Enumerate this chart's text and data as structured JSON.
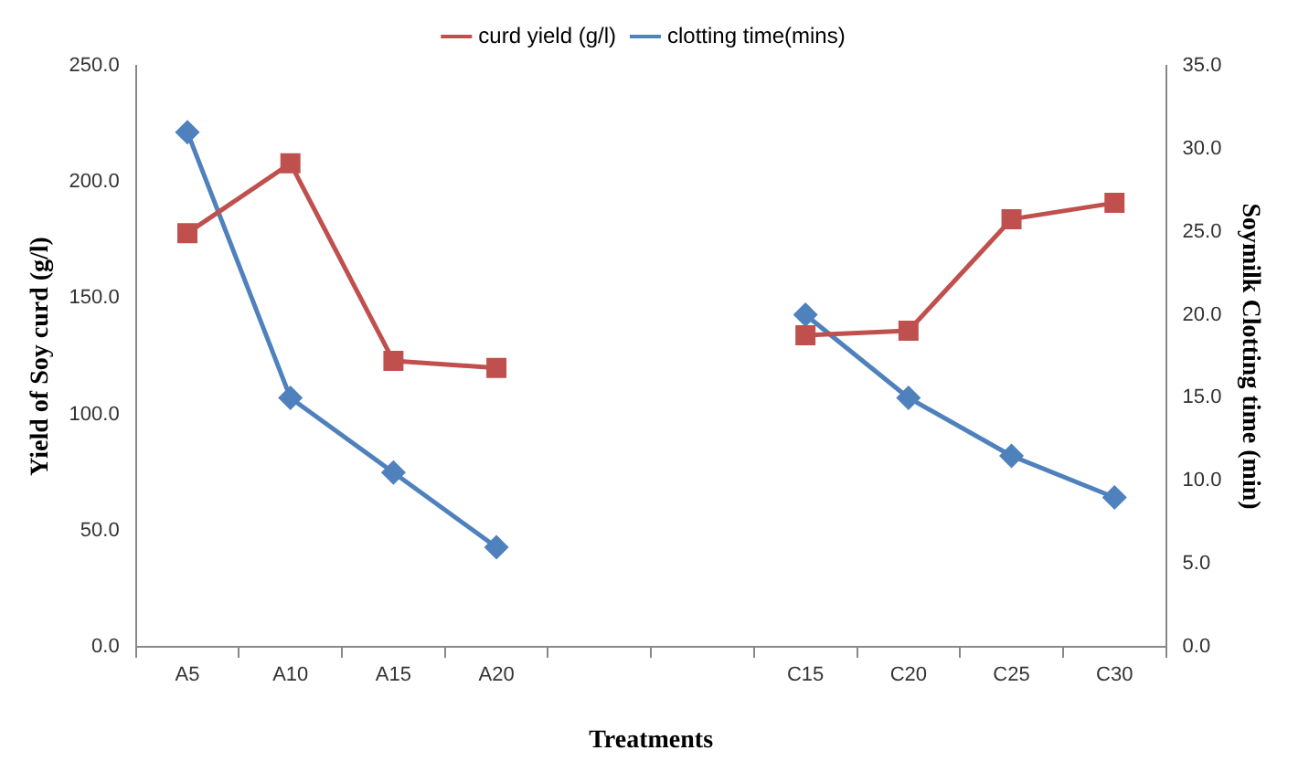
{
  "chart_data": {
    "type": "line",
    "xlabel": "Treatments",
    "ylabel": "Yield of Soy curd (g/l)",
    "y2label": "Soymilk Clotting time (min)",
    "categories": [
      "A5",
      "A10",
      "A15",
      "A20",
      null,
      null,
      "C15",
      "C20",
      "C25",
      "C30"
    ],
    "series": [
      {
        "name": "curd yield (g/l)",
        "color": "#c0504d",
        "marker": "square",
        "values": [
          178,
          208,
          123,
          120,
          null,
          null,
          134,
          136,
          184,
          191
        ]
      },
      {
        "name": "clotting time(mins)",
        "color": "#4f81bd",
        "marker": "diamond",
        "axis": "y2",
        "values": [
          31.0,
          15.0,
          10.5,
          6.0,
          null,
          null,
          20.0,
          15.0,
          11.5,
          9.0
        ]
      }
    ],
    "ylim": [
      0,
      250
    ],
    "yticks": [
      {
        "value": 0,
        "label": "0.0"
      },
      {
        "value": 50,
        "label": "50.0"
      },
      {
        "value": 100,
        "label": "100.0"
      },
      {
        "value": 150,
        "label": "150.0"
      },
      {
        "value": 200,
        "label": "200.0"
      },
      {
        "value": 250,
        "label": "250.0"
      }
    ],
    "y2lim": [
      0,
      35
    ],
    "y2ticks": [
      {
        "value": 0,
        "label": "0.0"
      },
      {
        "value": 5,
        "label": "5.0"
      },
      {
        "value": 10,
        "label": "10.0"
      },
      {
        "value": 15,
        "label": "15.0"
      },
      {
        "value": 20,
        "label": "20.0"
      },
      {
        "value": 25,
        "label": "25.0"
      },
      {
        "value": 30,
        "label": "30.0"
      },
      {
        "value": 35,
        "label": "35.0"
      }
    ],
    "grid": false,
    "legend": "top",
    "line_style": "solid"
  }
}
